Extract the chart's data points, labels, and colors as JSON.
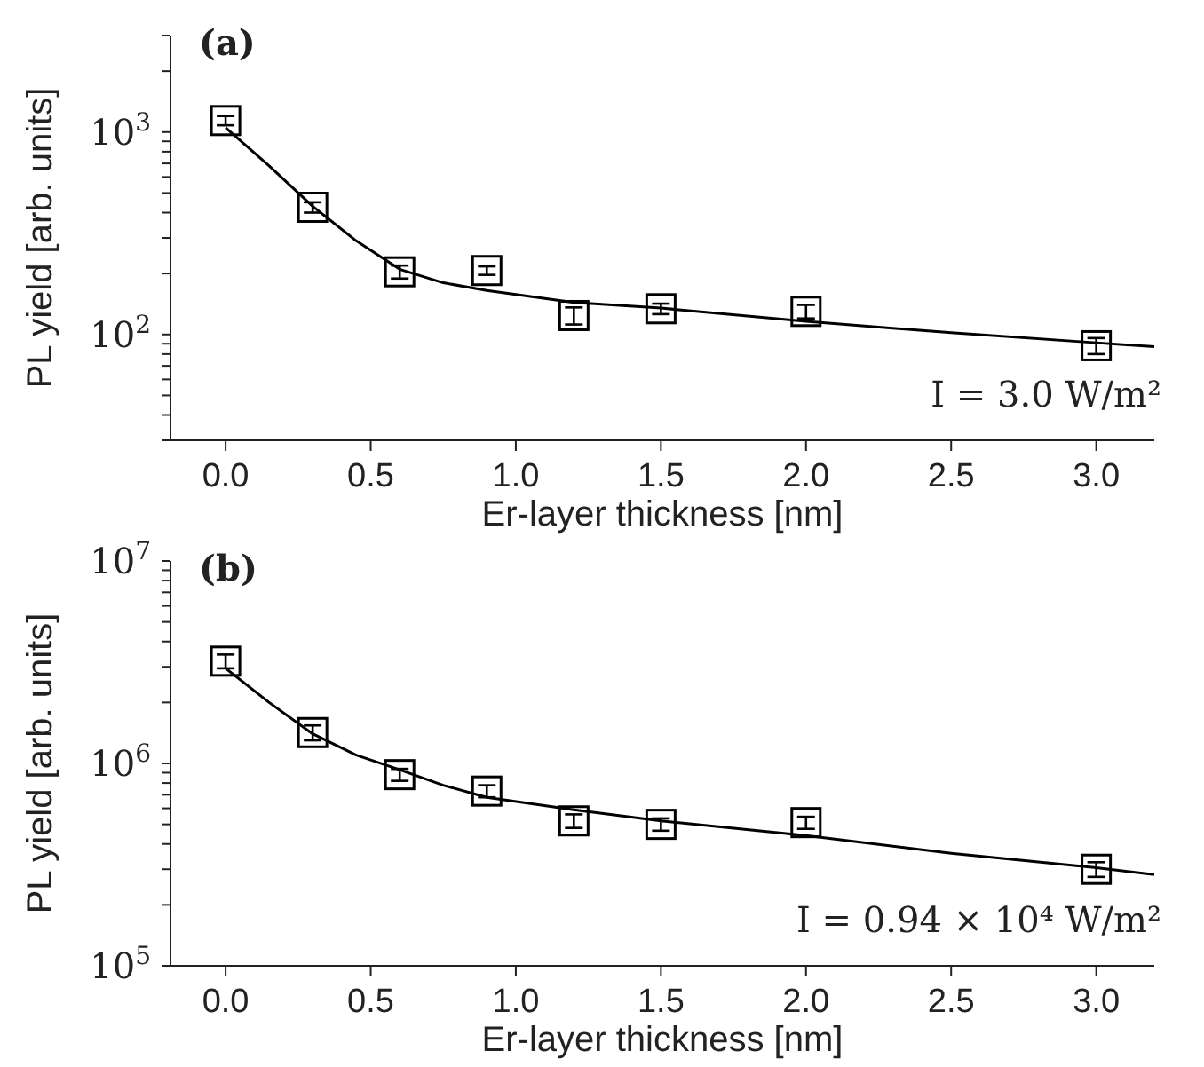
{
  "chart_data": [
    {
      "type": "scatter",
      "xlabel": "Er-layer thickness [nm]",
      "ylabel": "PL yield [arb. units]",
      "log": "y",
      "marker": "square",
      "line_style": "solid",
      "annotations": [
        "(a)",
        "I = 3.0 W/m²"
      ],
      "x": [
        0,
        0.3,
        0.6,
        0.9,
        1.2,
        1.5,
        2.0,
        3.0
      ],
      "series": [
        {
          "color": "#000000",
          "values": [
            1140,
            425,
            204,
            207,
            124,
            134,
            130,
            88
          ],
          "errors": [
            60,
            25,
            15,
            10,
            12,
            8,
            10,
            8
          ]
        },
        {
          "type": "line",
          "marker": "none",
          "color": "#000000",
          "x": [
            0,
            0.15,
            0.3,
            0.45,
            0.6,
            0.75,
            0.9,
            1.2,
            1.5,
            2.0,
            2.5,
            3.0,
            3.2
          ],
          "values": [
            1050,
            680,
            430,
            290,
            210,
            180,
            165,
            144,
            135,
            116,
            102,
            91,
            87
          ]
        }
      ],
      "xlim": [
        -0.19,
        3.2
      ],
      "xticks": [
        {
          "value": 0,
          "label": "0.0"
        },
        0.5,
        {
          "value": 1,
          "label": "1.0"
        },
        1.5,
        {
          "value": 2,
          "label": "2.0"
        },
        2.5,
        {
          "value": 3,
          "label": "3.0"
        }
      ],
      "ylim": [
        30,
        3000
      ],
      "yticks": [
        {
          "value": 30,
          "label": null
        },
        {
          "value": 40,
          "label": null
        },
        {
          "value": 50,
          "label": null
        },
        {
          "value": 60,
          "label": null
        },
        {
          "value": 70,
          "label": null
        },
        {
          "value": 80,
          "label": null
        },
        {
          "value": 90,
          "label": null
        },
        {
          "value": 100,
          "label": "10$^{2}$"
        },
        {
          "value": 200,
          "label": null
        },
        {
          "value": 300,
          "label": null
        },
        {
          "value": 400,
          "label": null
        },
        {
          "value": 500,
          "label": null
        },
        {
          "value": 600,
          "label": null
        },
        {
          "value": 700,
          "label": null
        },
        {
          "value": 800,
          "label": null
        },
        {
          "value": 900,
          "label": null
        },
        {
          "value": 1000,
          "label": "10$^{3}$"
        },
        {
          "value": 2000,
          "label": null
        },
        {
          "value": 3000,
          "label": null
        }
      ]
    },
    {
      "type": "scatter",
      "xlabel": "Er-layer thickness [nm]",
      "ylabel": "PL yield [arb. units]",
      "log": "y",
      "marker": "square",
      "line_style": "solid",
      "annotations": [
        "(b)",
        "I = 0.94 × 10⁴ W/m²"
      ],
      "x": [
        0,
        0.3,
        0.6,
        0.9,
        1.2,
        1.5,
        2.0,
        3.0
      ],
      "series": [
        {
          "color": "#000000",
          "values": [
            3200000,
            1420000,
            880000,
            730000,
            520000,
            500000,
            510000,
            300000
          ],
          "errors": [
            250000,
            120000,
            60000,
            50000,
            40000,
            35000,
            35000,
            25000
          ]
        },
        {
          "type": "line",
          "marker": "none",
          "color": "#000000",
          "x": [
            0,
            0.15,
            0.3,
            0.45,
            0.6,
            0.75,
            0.9,
            1.2,
            1.5,
            2.0,
            2.5,
            3.0,
            3.2
          ],
          "values": [
            2950000,
            2000000,
            1400000,
            1100000,
            930000,
            780000,
            680000,
            590000,
            520000,
            440000,
            360000,
            305000,
            282000
          ]
        }
      ],
      "xlim": [
        -0.19,
        3.2
      ],
      "xticks": [
        {
          "value": 0,
          "label": "0.0"
        },
        0.5,
        {
          "value": 1,
          "label": "1.0"
        },
        1.5,
        {
          "value": 2,
          "label": "2.0"
        },
        2.5,
        {
          "value": 3,
          "label": "3.0"
        }
      ],
      "ylim": [
        100000,
        10000000
      ],
      "yticks": [
        {
          "value": 100000,
          "label": "10$^{5}$"
        },
        {
          "value": 200000,
          "label": null
        },
        {
          "value": 300000,
          "label": null
        },
        {
          "value": 400000,
          "label": null
        },
        {
          "value": 500000,
          "label": null
        },
        {
          "value": 600000,
          "label": null
        },
        {
          "value": 700000,
          "label": null
        },
        {
          "value": 800000,
          "label": null
        },
        {
          "value": 900000,
          "label": null
        },
        {
          "value": 1000000,
          "label": "10$^{6}$"
        },
        {
          "value": 2000000,
          "label": null
        },
        {
          "value": 3000000,
          "label": null
        },
        {
          "value": 4000000,
          "label": null
        },
        {
          "value": 5000000,
          "label": null
        },
        {
          "value": 6000000,
          "label": null
        },
        {
          "value": 7000000,
          "label": null
        },
        {
          "value": 8000000,
          "label": null
        },
        {
          "value": 9000000,
          "label": null
        },
        {
          "value": 10000000,
          "label": "10$^{7}$"
        }
      ]
    }
  ]
}
